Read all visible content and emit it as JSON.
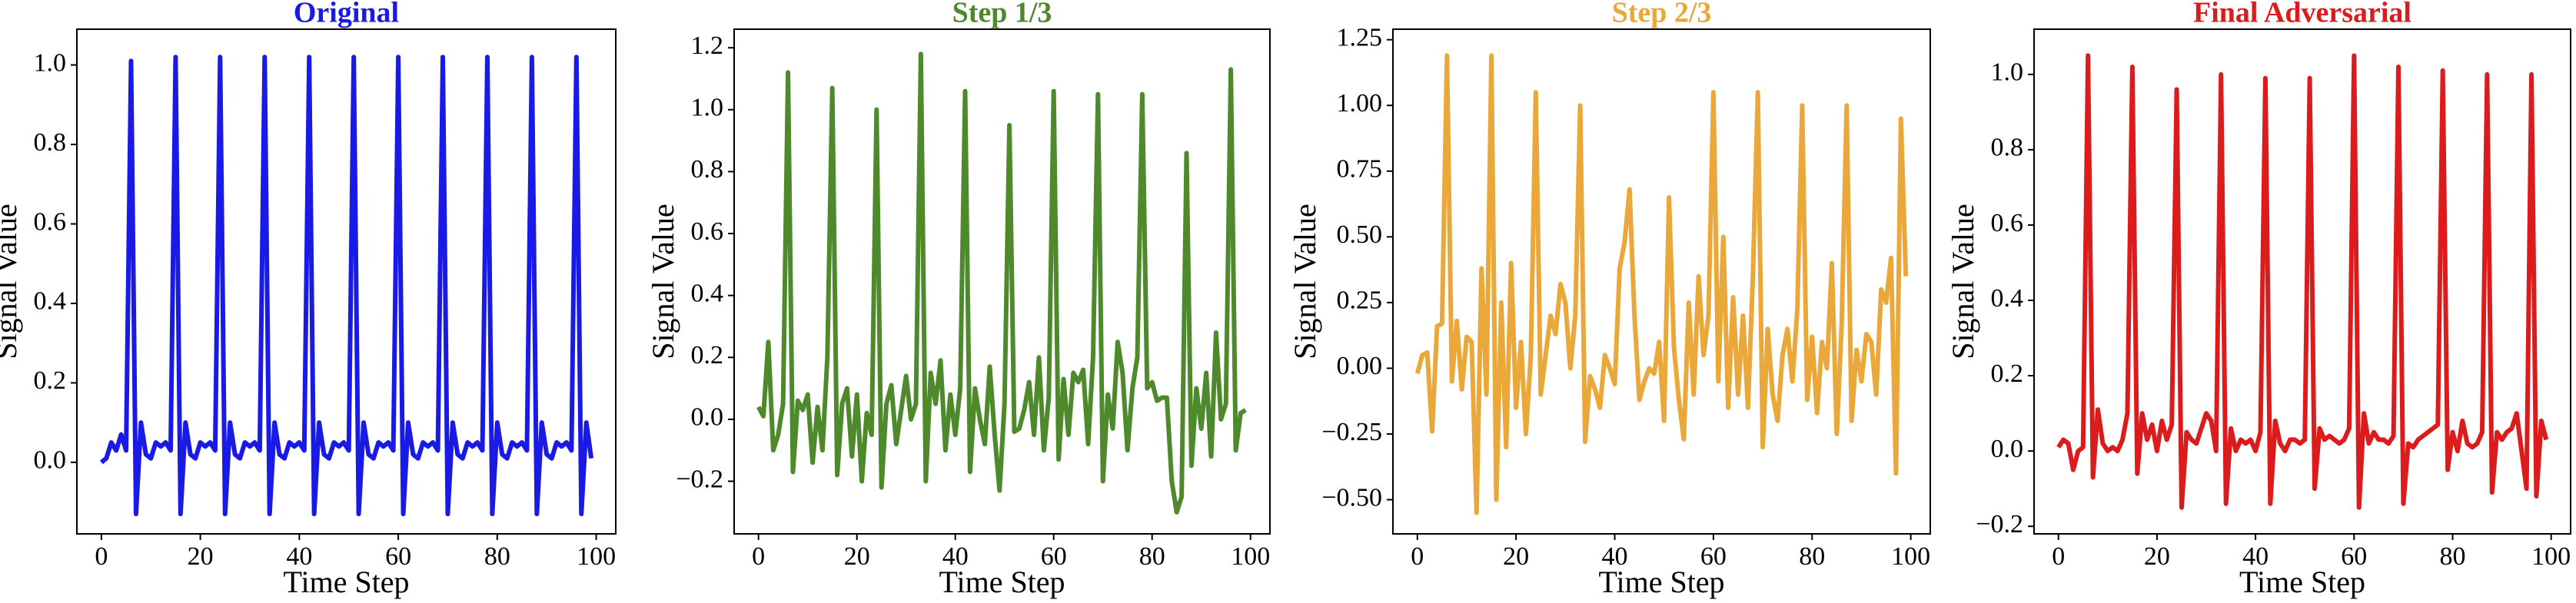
{
  "chart_data": [
    {
      "type": "line",
      "title": "Original",
      "xlabel": "Time Step",
      "ylabel": "Signal Value",
      "color": "#1a1ae6",
      "x": [
        0,
        1,
        2,
        3,
        4,
        5,
        6,
        7,
        8,
        9,
        10,
        11,
        12,
        13,
        14,
        15,
        16,
        17,
        18,
        19,
        20,
        21,
        22,
        23,
        24,
        25,
        26,
        27,
        28,
        29,
        30,
        31,
        32,
        33,
        34,
        35,
        36,
        37,
        38,
        39,
        40,
        41,
        42,
        43,
        44,
        45,
        46,
        47,
        48,
        49,
        50,
        51,
        52,
        53,
        54,
        55,
        56,
        57,
        58,
        59,
        60,
        61,
        62,
        63,
        64,
        65,
        66,
        67,
        68,
        69,
        70,
        71,
        72,
        73,
        74,
        75,
        76,
        77,
        78,
        79,
        80,
        81,
        82,
        83,
        84,
        85,
        86,
        87,
        88,
        89,
        90,
        91,
        92,
        93,
        94,
        95,
        96,
        97,
        98,
        99
      ],
      "values": [
        0.0,
        0.01,
        0.05,
        0.03,
        0.07,
        0.03,
        1.01,
        -0.13,
        0.1,
        0.02,
        0.01,
        0.05,
        0.04,
        0.05,
        0.03,
        1.02,
        -0.13,
        0.1,
        0.02,
        0.01,
        0.05,
        0.04,
        0.05,
        0.03,
        1.02,
        -0.13,
        0.1,
        0.02,
        0.01,
        0.05,
        0.04,
        0.05,
        0.03,
        1.02,
        -0.13,
        0.1,
        0.02,
        0.01,
        0.05,
        0.04,
        0.05,
        0.03,
        1.02,
        -0.13,
        0.1,
        0.02,
        0.01,
        0.05,
        0.04,
        0.05,
        0.03,
        1.02,
        -0.13,
        0.1,
        0.02,
        0.01,
        0.05,
        0.04,
        0.05,
        0.03,
        1.02,
        -0.13,
        0.1,
        0.02,
        0.01,
        0.05,
        0.04,
        0.05,
        0.03,
        1.02,
        -0.13,
        0.1,
        0.02,
        0.01,
        0.05,
        0.04,
        0.05,
        0.03,
        1.02,
        -0.13,
        0.1,
        0.02,
        0.01,
        0.05,
        0.04,
        0.05,
        0.03,
        1.02,
        -0.13,
        0.1,
        0.02,
        0.01,
        0.05,
        0.04,
        0.05,
        0.03,
        1.02,
        -0.13,
        0.1,
        0.01
      ],
      "xlim": [
        -4.95,
        103.95
      ],
      "xticks": [
        0,
        20,
        40,
        60,
        80,
        100
      ],
      "ylim": [
        -0.18,
        1.09
      ],
      "yticks": [
        {
          "value": 0,
          "label": "0.0"
        },
        {
          "value": 0.2,
          "label": "0.2"
        },
        {
          "value": 0.4,
          "label": "0.4"
        },
        {
          "value": 0.6,
          "label": "0.6"
        },
        {
          "value": 0.8,
          "label": "0.8"
        },
        {
          "value": 1,
          "label": "1.0"
        }
      ]
    },
    {
      "type": "line",
      "title": "Step 1/3",
      "xlabel": "Time Step",
      "ylabel": "Signal Value",
      "color": "#4e8a2c",
      "x": [
        0,
        1,
        2,
        3,
        4,
        5,
        6,
        7,
        8,
        9,
        10,
        11,
        12,
        13,
        14,
        15,
        16,
        17,
        18,
        19,
        20,
        21,
        22,
        23,
        24,
        25,
        26,
        27,
        28,
        29,
        30,
        31,
        32,
        33,
        34,
        35,
        36,
        37,
        38,
        39,
        40,
        41,
        42,
        43,
        44,
        45,
        46,
        47,
        48,
        49,
        50,
        51,
        52,
        53,
        54,
        55,
        56,
        57,
        58,
        59,
        60,
        61,
        62,
        63,
        64,
        65,
        66,
        67,
        68,
        69,
        70,
        71,
        72,
        73,
        74,
        75,
        76,
        77,
        78,
        79,
        80,
        81,
        82,
        83,
        84,
        85,
        86,
        87,
        88,
        89,
        90,
        91,
        92,
        93,
        94,
        95,
        96,
        97,
        98,
        99
      ],
      "values": [
        0.04,
        0.01,
        0.25,
        -0.1,
        -0.05,
        0.05,
        1.12,
        -0.17,
        0.06,
        0.03,
        0.08,
        -0.14,
        0.04,
        -0.1,
        0.2,
        1.07,
        -0.18,
        0.05,
        0.1,
        -0.12,
        0.08,
        -0.2,
        0.02,
        -0.05,
        1.0,
        -0.22,
        0.05,
        0.11,
        -0.08,
        0.03,
        0.14,
        0.0,
        0.05,
        1.18,
        -0.2,
        0.15,
        0.05,
        0.19,
        -0.1,
        0.08,
        -0.05,
        0.1,
        1.06,
        -0.17,
        0.1,
        0.0,
        -0.08,
        0.17,
        -0.05,
        -0.23,
        0.05,
        0.95,
        -0.04,
        -0.03,
        0.03,
        0.12,
        -0.05,
        0.2,
        -0.1,
        0.07,
        1.06,
        -0.13,
        0.13,
        -0.05,
        0.15,
        0.12,
        0.16,
        -0.08,
        0.2,
        1.05,
        -0.2,
        0.08,
        -0.03,
        0.25,
        0.15,
        -0.1,
        0.1,
        0.2,
        1.05,
        0.1,
        0.12,
        0.06,
        0.07,
        0.07,
        -0.2,
        -0.3,
        -0.25,
        0.86,
        -0.15,
        0.1,
        -0.03,
        0.15,
        -0.12,
        0.28,
        0.0,
        0.05,
        1.13,
        -0.1,
        0.02,
        0.03
      ],
      "xlim": [
        -4.95,
        103.95
      ],
      "xticks": [
        0,
        20,
        40,
        60,
        80,
        100
      ],
      "ylim": [
        -0.37,
        1.26
      ],
      "yticks": [
        {
          "value": -0.2,
          "label": "−0.2"
        },
        {
          "value": 0,
          "label": "0.0"
        },
        {
          "value": 0.2,
          "label": "0.2"
        },
        {
          "value": 0.4,
          "label": "0.4"
        },
        {
          "value": 0.6,
          "label": "0.6"
        },
        {
          "value": 0.8,
          "label": "0.8"
        },
        {
          "value": 1,
          "label": "1.0"
        },
        {
          "value": 1.2,
          "label": "1.2"
        }
      ]
    },
    {
      "type": "line",
      "title": "Step 2/3",
      "xlabel": "Time Step",
      "ylabel": "Signal Value",
      "color": "#eba83a",
      "x": [
        0,
        1,
        2,
        3,
        4,
        5,
        6,
        7,
        8,
        9,
        10,
        11,
        12,
        13,
        14,
        15,
        16,
        17,
        18,
        19,
        20,
        21,
        22,
        23,
        24,
        25,
        26,
        27,
        28,
        29,
        30,
        31,
        32,
        33,
        34,
        35,
        36,
        37,
        38,
        39,
        40,
        41,
        42,
        43,
        44,
        45,
        46,
        47,
        48,
        49,
        50,
        51,
        52,
        53,
        54,
        55,
        56,
        57,
        58,
        59,
        60,
        61,
        62,
        63,
        64,
        65,
        66,
        67,
        68,
        69,
        70,
        71,
        72,
        73,
        74,
        75,
        76,
        77,
        78,
        79,
        80,
        81,
        82,
        83,
        84,
        85,
        86,
        87,
        88,
        89,
        90,
        91,
        92,
        93,
        94,
        95,
        96,
        97,
        98,
        99
      ],
      "values": [
        -0.02,
        0.05,
        0.06,
        -0.24,
        0.16,
        0.17,
        1.19,
        -0.05,
        0.18,
        -0.08,
        0.12,
        0.1,
        -0.55,
        0.38,
        -0.1,
        1.19,
        -0.5,
        0.25,
        -0.3,
        0.4,
        -0.15,
        0.1,
        -0.25,
        0.05,
        1.05,
        -0.1,
        0.05,
        0.2,
        0.13,
        0.32,
        0.25,
        0.0,
        0.2,
        1.0,
        -0.28,
        -0.03,
        -0.08,
        -0.15,
        0.05,
        0.0,
        -0.06,
        0.38,
        0.48,
        0.68,
        0.2,
        -0.12,
        -0.05,
        0.0,
        -0.02,
        0.1,
        -0.2,
        0.65,
        0.08,
        -0.12,
        -0.27,
        0.25,
        -0.1,
        0.35,
        0.05,
        0.2,
        1.05,
        -0.05,
        0.5,
        -0.15,
        0.27,
        -0.1,
        0.2,
        -0.15,
        0.35,
        1.05,
        -0.3,
        0.15,
        -0.1,
        -0.2,
        0.05,
        0.15,
        -0.05,
        0.22,
        1.0,
        -0.12,
        0.12,
        -0.17,
        0.1,
        0.0,
        0.4,
        -0.25,
        0.17,
        1.0,
        -0.2,
        0.07,
        -0.05,
        0.13,
        0.1,
        -0.1,
        0.3,
        0.25,
        0.42,
        -0.4,
        0.95,
        0.35
      ],
      "xlim": [
        -4.95,
        103.95
      ],
      "xticks": [
        0,
        20,
        40,
        60,
        80,
        100
      ],
      "ylim": [
        -0.63,
        1.29
      ],
      "yticks": [
        {
          "value": -0.5,
          "label": "−0.50"
        },
        {
          "value": -0.25,
          "label": "−0.25"
        },
        {
          "value": 0,
          "label": "0.00"
        },
        {
          "value": 0.25,
          "label": "0.25"
        },
        {
          "value": 0.5,
          "label": "0.50"
        },
        {
          "value": 0.75,
          "label": "0.75"
        },
        {
          "value": 1,
          "label": "1.00"
        },
        {
          "value": 1.25,
          "label": "1.25"
        }
      ]
    },
    {
      "type": "line",
      "title": "Final Adversarial",
      "xlabel": "Time Step",
      "ylabel": "Signal Value",
      "color": "#dc1c1c",
      "x": [
        0,
        1,
        2,
        3,
        4,
        5,
        6,
        7,
        8,
        9,
        10,
        11,
        12,
        13,
        14,
        15,
        16,
        17,
        18,
        19,
        20,
        21,
        22,
        23,
        24,
        25,
        26,
        27,
        28,
        29,
        30,
        31,
        32,
        33,
        34,
        35,
        36,
        37,
        38,
        39,
        40,
        41,
        42,
        43,
        44,
        45,
        46,
        47,
        48,
        49,
        50,
        51,
        52,
        53,
        54,
        55,
        56,
        57,
        58,
        59,
        60,
        61,
        62,
        63,
        64,
        65,
        66,
        67,
        68,
        69,
        70,
        71,
        72,
        73,
        74,
        75,
        76,
        77,
        78,
        79,
        80,
        81,
        82,
        83,
        84,
        85,
        86,
        87,
        88,
        89,
        90,
        91,
        92,
        93,
        94,
        95,
        96,
        97,
        98,
        99
      ],
      "values": [
        0.01,
        0.03,
        0.02,
        -0.05,
        0.0,
        0.01,
        1.05,
        -0.07,
        0.11,
        0.02,
        0.0,
        0.01,
        0.0,
        0.03,
        0.1,
        1.02,
        -0.06,
        0.1,
        0.03,
        0.07,
        0.0,
        0.08,
        0.03,
        0.07,
        0.96,
        -0.15,
        0.05,
        0.03,
        0.02,
        0.06,
        0.1,
        0.08,
        0.0,
        1.0,
        -0.14,
        0.06,
        0.0,
        0.03,
        0.02,
        0.03,
        0.0,
        0.05,
        0.99,
        -0.14,
        0.08,
        0.02,
        0.0,
        0.03,
        0.03,
        0.02,
        0.03,
        0.99,
        -0.1,
        0.06,
        0.03,
        0.04,
        0.03,
        0.02,
        0.03,
        0.06,
        1.05,
        -0.15,
        0.1,
        0.02,
        0.05,
        0.03,
        0.03,
        0.02,
        0.04,
        1.02,
        -0.14,
        0.02,
        0.01,
        0.03,
        0.04,
        0.05,
        0.06,
        0.07,
        1.01,
        -0.05,
        0.05,
        0.0,
        0.08,
        0.02,
        0.01,
        0.02,
        0.05,
        1.0,
        -0.11,
        0.05,
        0.03,
        0.05,
        0.06,
        0.1,
        0.0,
        -0.1,
        1.0,
        -0.12,
        0.08,
        0.03
      ],
      "xlim": [
        -4.95,
        103.95
      ],
      "xticks": [
        0,
        20,
        40,
        60,
        80,
        100
      ],
      "ylim": [
        -0.22,
        1.12
      ],
      "yticks": [
        {
          "value": -0.2,
          "label": "−0.2"
        },
        {
          "value": 0,
          "label": "0.0"
        },
        {
          "value": 0.2,
          "label": "0.2"
        },
        {
          "value": 0.4,
          "label": "0.4"
        },
        {
          "value": 0.6,
          "label": "0.6"
        },
        {
          "value": 0.8,
          "label": "0.8"
        },
        {
          "value": 1,
          "label": "1.0"
        }
      ]
    }
  ]
}
